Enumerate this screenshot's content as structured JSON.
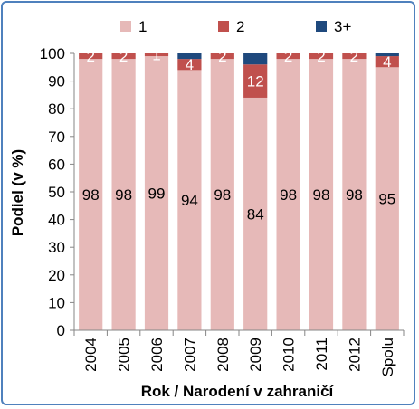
{
  "chart_data": {
    "type": "bar",
    "stacked": true,
    "percent": true,
    "categories": [
      "2004",
      "2005",
      "2006",
      "2007",
      "2008",
      "2009",
      "2010",
      "2011",
      "2012",
      "Spolu"
    ],
    "series": [
      {
        "name": "1",
        "color": "#e6b9b8",
        "values": [
          98,
          98,
          99,
          94,
          98,
          84,
          98,
          98,
          98,
          95
        ],
        "label_color": "#000000"
      },
      {
        "name": "2",
        "color": "#c0504d",
        "values": [
          2,
          2,
          1,
          4,
          2,
          12,
          2,
          2,
          2,
          4
        ],
        "label_color": "#ffffff"
      },
      {
        "name": "3+",
        "color": "#1f497d",
        "values": [
          0,
          0,
          0,
          2,
          0,
          4,
          0,
          0,
          0,
          1
        ],
        "label_color": "#ffffff"
      }
    ],
    "data_labels": {
      "1": [
        "98",
        "98",
        "99",
        "94",
        "98",
        "84",
        "98",
        "98",
        "98",
        "95"
      ],
      "2": [
        "2",
        "2",
        "1",
        "4",
        "2",
        "12",
        "2",
        "2",
        "2",
        "4"
      ]
    },
    "xlabel": "Rok / Narodení v zahraničí",
    "ylabel": "Podiel (v %)",
    "ylim": [
      0,
      100
    ],
    "yticks": [
      0,
      10,
      20,
      30,
      40,
      50,
      60,
      70,
      80,
      90,
      100
    ],
    "grid": false,
    "legend_position": "top"
  }
}
